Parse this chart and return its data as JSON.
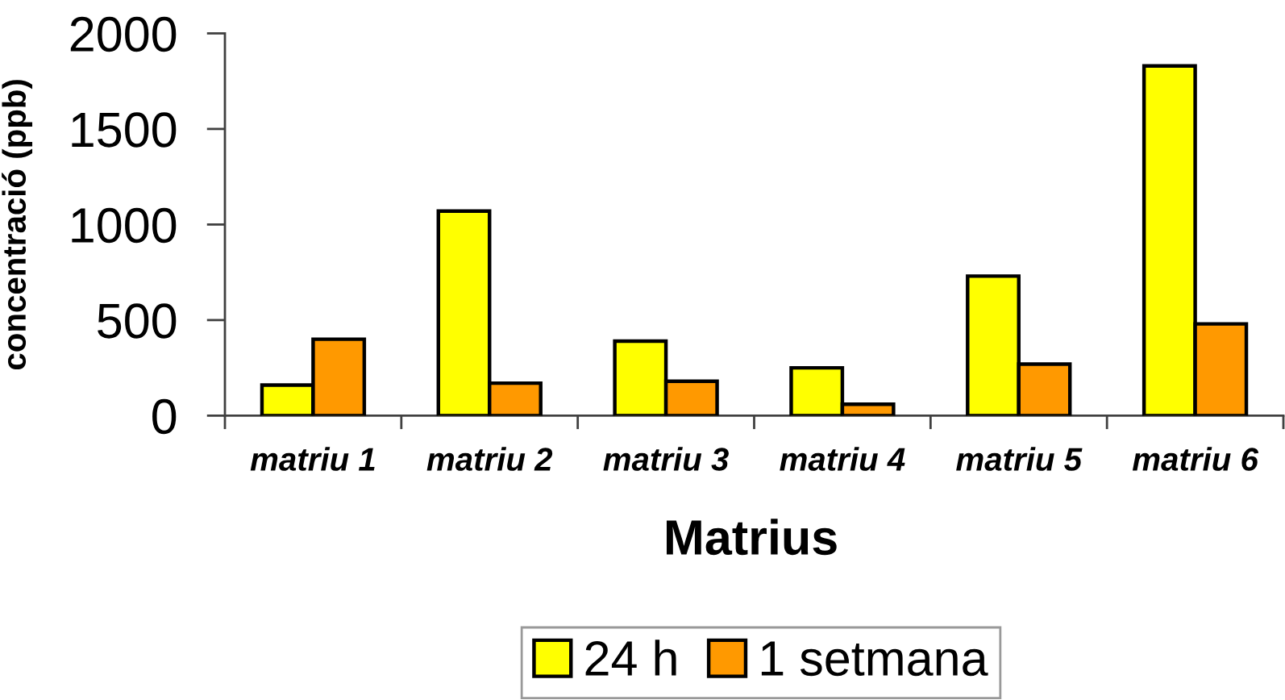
{
  "chart_data": {
    "type": "bar",
    "ylabel": "concentració (ppb)",
    "xlabel": "Matrius",
    "categories": [
      "matriu 1",
      "matriu 2",
      "matriu 3",
      "matriu 4",
      "matriu 5",
      "matriu 6"
    ],
    "series": [
      {
        "name": "24 h",
        "color": "#ffff00",
        "values": [
          160,
          1070,
          390,
          250,
          730,
          1830
        ]
      },
      {
        "name": "1 setmana",
        "color": "#ff9900",
        "values": [
          400,
          170,
          180,
          60,
          270,
          480
        ]
      }
    ],
    "ylim": [
      0,
      2000
    ],
    "yticks": [
      0,
      500,
      1000,
      1500,
      2000
    ],
    "grid": false,
    "legend": "bottom"
  }
}
